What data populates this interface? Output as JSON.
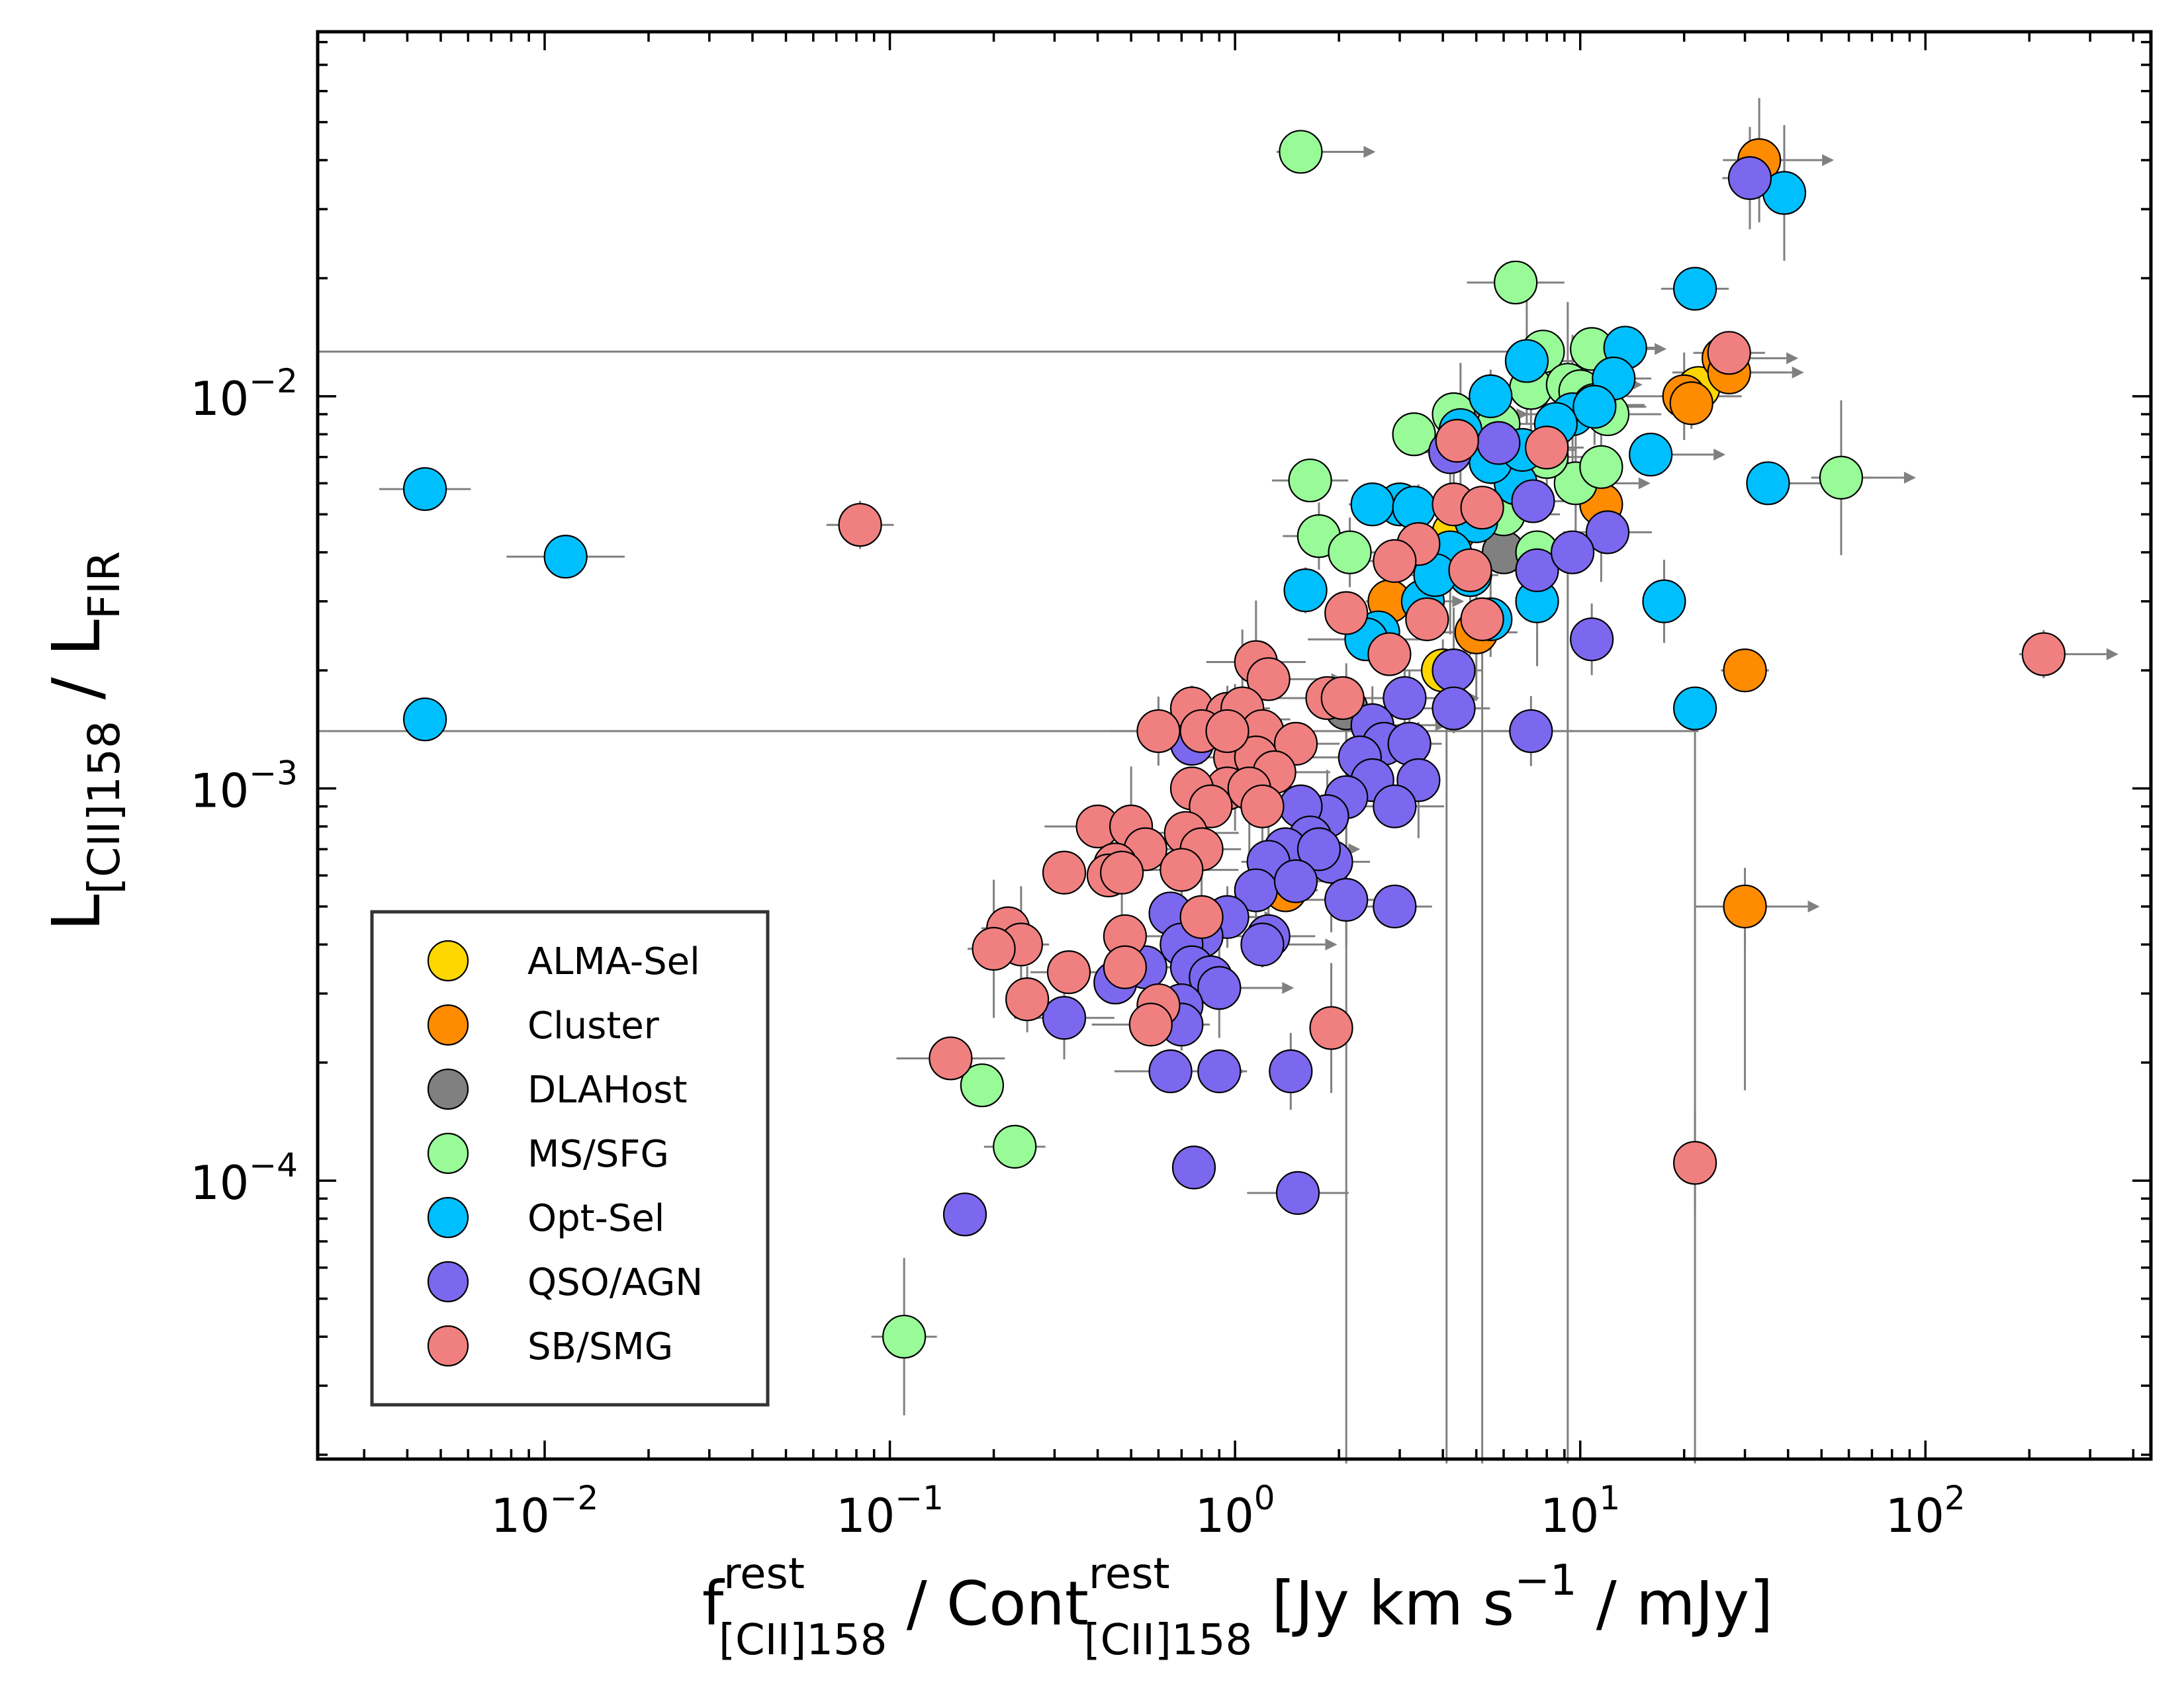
{
  "chart_data": {
    "type": "scatter",
    "x_label": {
      "base": "f",
      "sup": "rest",
      "sub": "[CII]158",
      "mid": " / Cont",
      "sup2": "rest",
      "sub2": "[CII]158",
      "tail": " [Jy km s",
      "tail_sup": "−1",
      "tail_end": " / mJy]"
    },
    "y_label": {
      "base": "L",
      "sub": "[CII]158",
      "mid": " / L",
      "sub2": "FIR"
    },
    "x_scale": "log",
    "y_scale": "log",
    "xlim": [
      0.0022,
      450
    ],
    "ylim": [
      1.95e-05,
      0.085
    ],
    "x_ticks": [
      {
        "value": 0.01,
        "base": "10",
        "exp": "−2"
      },
      {
        "value": 0.1,
        "base": "10",
        "exp": "−1"
      },
      {
        "value": 1,
        "base": "10",
        "exp": "0"
      },
      {
        "value": 10,
        "base": "10",
        "exp": "1"
      },
      {
        "value": 100,
        "base": "10",
        "exp": "2"
      }
    ],
    "y_ticks": [
      {
        "value": 0.0001,
        "base": "10",
        "exp": "−4"
      },
      {
        "value": 0.001,
        "base": "10",
        "exp": "−3"
      },
      {
        "value": 0.01,
        "base": "10",
        "exp": "−2"
      }
    ],
    "legend_position": "lower-left",
    "series": [
      {
        "name": "ALMA-Sel",
        "color": "#FFD700",
        "points": [
          [
            4.0,
            0.002
          ],
          [
            22,
            0.0105
          ],
          [
            4.3,
            0.0045
          ]
        ]
      },
      {
        "name": "Cluster",
        "color": "#FF8C00",
        "points": [
          [
            33,
            0.04
          ],
          [
            26,
            0.0125
          ],
          [
            27,
            0.0115
          ],
          [
            20,
            0.01
          ],
          [
            21,
            0.0096
          ],
          [
            30,
            0.002
          ],
          [
            30,
            0.0005
          ],
          [
            11.5,
            0.0053
          ],
          [
            5.0,
            0.0025
          ],
          [
            2.8,
            0.003
          ],
          [
            1.4,
            0.00055
          ]
        ]
      },
      {
        "name": "DLAHost",
        "color": "#808080",
        "points": [
          [
            2.1,
            0.0016
          ],
          [
            6.0,
            0.004
          ]
        ]
      },
      {
        "name": "MS/SFG",
        "color": "#98FB98",
        "points": [
          [
            1.55,
            0.042
          ],
          [
            6.5,
            0.0195
          ],
          [
            7.8,
            0.013
          ],
          [
            10.8,
            0.0132
          ],
          [
            7.2,
            0.0105
          ],
          [
            9.2,
            0.0107
          ],
          [
            10,
            0.0103
          ],
          [
            12,
            0.009
          ],
          [
            11,
            0.0095
          ],
          [
            5.8,
            0.0085
          ],
          [
            3.3,
            0.008
          ],
          [
            4.3,
            0.009
          ],
          [
            1.65,
            0.0061
          ],
          [
            1.75,
            0.0044
          ],
          [
            2.15,
            0.004
          ],
          [
            9.7,
            0.006
          ],
          [
            11.5,
            0.0066
          ],
          [
            8.0,
            0.007
          ],
          [
            6.0,
            0.005
          ],
          [
            57,
            0.0062
          ],
          [
            0.185,
            0.000175
          ],
          [
            0.23,
            0.000122
          ],
          [
            0.11,
            4e-05
          ],
          [
            1.0,
            0.0015
          ],
          [
            7.5,
            0.004
          ]
        ]
      },
      {
        "name": "Opt-Sel",
        "color": "#00BFFF",
        "points": [
          [
            0.0045,
            0.0058
          ],
          [
            0.0115,
            0.0039
          ],
          [
            0.0045,
            0.0015
          ],
          [
            39,
            0.033
          ],
          [
            21.5,
            0.0188
          ],
          [
            13.5,
            0.0133
          ],
          [
            7.0,
            0.0123
          ],
          [
            12.5,
            0.0111
          ],
          [
            5.5,
            0.01
          ],
          [
            9.5,
            0.009
          ],
          [
            11,
            0.0094
          ],
          [
            16,
            0.0071
          ],
          [
            8.5,
            0.0085
          ],
          [
            4.5,
            0.0082
          ],
          [
            3.0,
            0.0053
          ],
          [
            2.5,
            0.0053
          ],
          [
            3.3,
            0.0052
          ],
          [
            6.5,
            0.006
          ],
          [
            5.0,
            0.0048
          ],
          [
            4.2,
            0.004
          ],
          [
            1.6,
            0.0032
          ],
          [
            3.5,
            0.003
          ],
          [
            4.8,
            0.0035
          ],
          [
            2.6,
            0.0025
          ],
          [
            7.5,
            0.003
          ],
          [
            5.5,
            0.0027
          ],
          [
            17.5,
            0.003
          ],
          [
            21.5,
            0.0016
          ],
          [
            35,
            0.006
          ],
          [
            5.5,
            0.0068
          ],
          [
            6.8,
            0.0073
          ],
          [
            3.8,
            0.0035
          ],
          [
            2.4,
            0.0024
          ],
          [
            0.9,
            0.00031
          ]
        ]
      },
      {
        "name": "QSO/AGN",
        "color": "#7B68EE",
        "points": [
          [
            31,
            0.036
          ],
          [
            4.2,
            0.0072
          ],
          [
            5.8,
            0.0076
          ],
          [
            7.3,
            0.0054
          ],
          [
            12,
            0.0045
          ],
          [
            7.5,
            0.0036
          ],
          [
            9.5,
            0.004
          ],
          [
            10.8,
            0.0024
          ],
          [
            7.2,
            0.0014
          ],
          [
            4.3,
            0.002
          ],
          [
            3.1,
            0.0017
          ],
          [
            4.3,
            0.0016
          ],
          [
            2.5,
            0.00145
          ],
          [
            2.7,
            0.0013
          ],
          [
            3.2,
            0.0013
          ],
          [
            2.3,
            0.0012
          ],
          [
            2.5,
            0.00105
          ],
          [
            3.4,
            0.00105
          ],
          [
            2.1,
            0.00095
          ],
          [
            2.9,
            0.0009
          ],
          [
            1.85,
            0.00085
          ],
          [
            1.55,
            0.0009
          ],
          [
            1.65,
            0.00075
          ],
          [
            1.9,
            0.00065
          ],
          [
            1.4,
            0.0007
          ],
          [
            1.75,
            0.0007
          ],
          [
            1.25,
            0.00065
          ],
          [
            1.15,
            0.00055
          ],
          [
            1.5,
            0.00058
          ],
          [
            2.1,
            0.00052
          ],
          [
            2.9,
            0.0005
          ],
          [
            0.95,
            0.00047
          ],
          [
            1.25,
            0.00042
          ],
          [
            1.2,
            0.0004
          ],
          [
            0.65,
            0.00048
          ],
          [
            0.8,
            0.00042
          ],
          [
            0.7,
            0.0004
          ],
          [
            0.55,
            0.00035
          ],
          [
            0.45,
            0.00032
          ],
          [
            0.75,
            0.00035
          ],
          [
            0.85,
            0.00033
          ],
          [
            0.9,
            0.00031
          ],
          [
            0.7,
            0.00028
          ],
          [
            0.7,
            0.00025
          ],
          [
            0.32,
            0.00026
          ],
          [
            0.65,
            0.00019
          ],
          [
            0.9,
            0.00019
          ],
          [
            1.45,
            0.00019
          ],
          [
            0.76,
            0.000108
          ],
          [
            1.52,
            9.3e-05
          ],
          [
            0.165,
            8.2e-05
          ],
          [
            0.75,
            0.0013
          ]
        ]
      },
      {
        "name": "SB/SMG",
        "color": "#F08080",
        "points": [
          [
            0.082,
            0.0047
          ],
          [
            220,
            0.0022
          ],
          [
            27,
            0.0129
          ],
          [
            4.4,
            0.0077
          ],
          [
            8.0,
            0.0074
          ],
          [
            4.3,
            0.0053
          ],
          [
            5.2,
            0.0052
          ],
          [
            3.4,
            0.0042
          ],
          [
            2.9,
            0.0038
          ],
          [
            4.8,
            0.0036
          ],
          [
            3.6,
            0.0027
          ],
          [
            2.1,
            0.0028
          ],
          [
            5.2,
            0.0027
          ],
          [
            2.8,
            0.0022
          ],
          [
            1.15,
            0.0021
          ],
          [
            1.25,
            0.0019
          ],
          [
            1.85,
            0.0017
          ],
          [
            2.05,
            0.0017
          ],
          [
            0.75,
            0.0016
          ],
          [
            0.95,
            0.00155
          ],
          [
            1.05,
            0.0016
          ],
          [
            0.6,
            0.0014
          ],
          [
            0.8,
            0.0014
          ],
          [
            1.2,
            0.0014
          ],
          [
            1.5,
            0.0013
          ],
          [
            1.0,
            0.0012
          ],
          [
            1.15,
            0.0012
          ],
          [
            1.3,
            0.0011
          ],
          [
            0.95,
            0.001
          ],
          [
            1.1,
            0.001
          ],
          [
            0.75,
            0.001
          ],
          [
            0.85,
            0.0009
          ],
          [
            1.2,
            0.0009
          ],
          [
            0.4,
            0.0008
          ],
          [
            0.5,
            0.0008
          ],
          [
            0.55,
            0.0007
          ],
          [
            0.72,
            0.00077
          ],
          [
            0.8,
            0.0007
          ],
          [
            0.45,
            0.00064
          ],
          [
            0.43,
            0.0006
          ],
          [
            0.47,
            0.00061
          ],
          [
            0.32,
            0.00061
          ],
          [
            0.7,
            0.00062
          ],
          [
            0.8,
            0.00047
          ],
          [
            0.48,
            0.00042
          ],
          [
            0.22,
            0.00044
          ],
          [
            0.24,
            0.0004
          ],
          [
            0.2,
            0.00039
          ],
          [
            0.33,
            0.00034
          ],
          [
            0.48,
            0.00035
          ],
          [
            0.25,
            0.00029
          ],
          [
            0.6,
            0.00028
          ],
          [
            0.57,
            0.00025
          ],
          [
            1.9,
            0.000245
          ],
          [
            0.15,
            0.000205
          ],
          [
            21.5,
            0.000111
          ],
          [
            0.95,
            0.0014
          ]
        ]
      }
    ]
  }
}
